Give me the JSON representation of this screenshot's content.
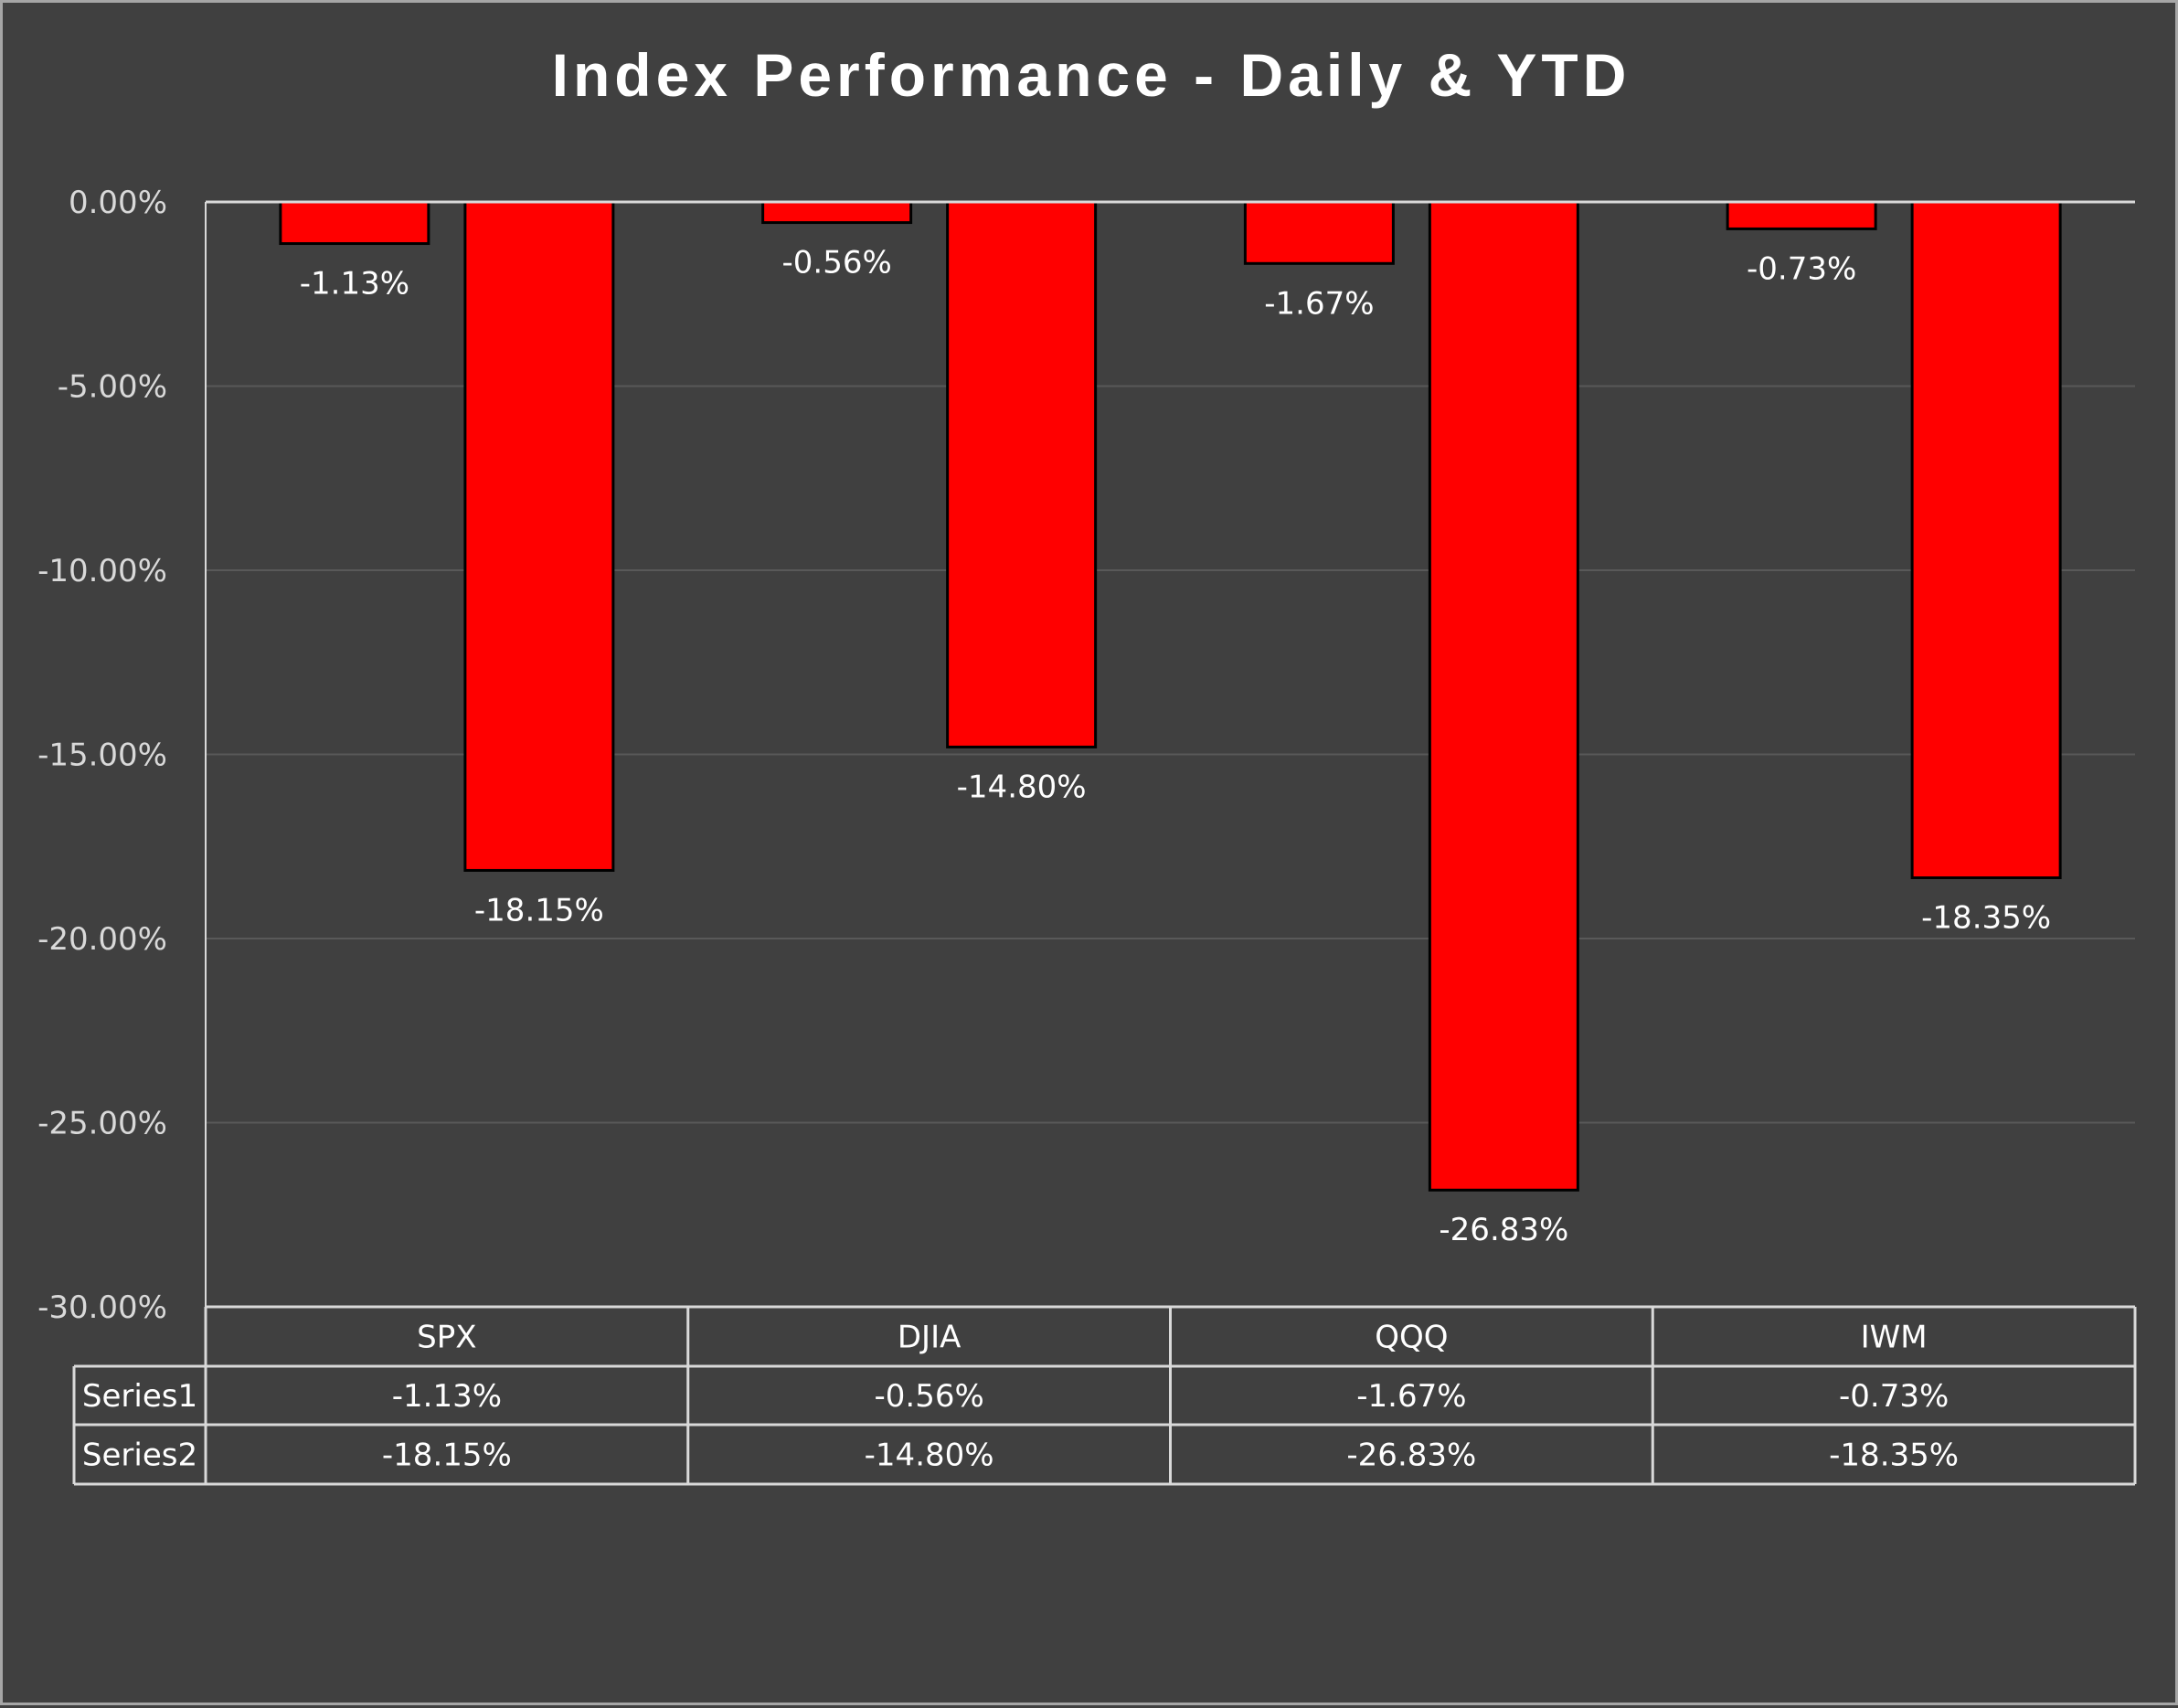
{
  "chart_data": {
    "type": "bar",
    "title": "Index Performance - Daily & YTD",
    "categories": [
      "SPX",
      "DJIA",
      "QQQ",
      "IWM"
    ],
    "series": [
      {
        "name": "Series1",
        "values": [
          -1.13,
          -0.56,
          -1.67,
          -0.73
        ],
        "labels": [
          "-1.13%",
          "-0.56%",
          "-1.67%",
          "-0.73%"
        ]
      },
      {
        "name": "Series2",
        "values": [
          -18.15,
          -14.8,
          -26.83,
          -18.35
        ],
        "labels": [
          "-18.15%",
          "-14.80%",
          "-26.83%",
          "-18.35%"
        ]
      }
    ],
    "ylim": [
      -30,
      0
    ],
    "yticks": [
      0,
      -5,
      -10,
      -15,
      -20,
      -25,
      -30
    ],
    "ytick_labels": [
      "0.00%",
      "-5.00%",
      "-10.00%",
      "-15.00%",
      "-20.00%",
      "-25.00%",
      "-30.00%"
    ],
    "grid": true,
    "data_table": true,
    "colors": {
      "bar": "#ff0000",
      "bar_border": "#000000",
      "background": "#404040",
      "gridline": "#595959",
      "axis": "#d9d9d9"
    }
  }
}
